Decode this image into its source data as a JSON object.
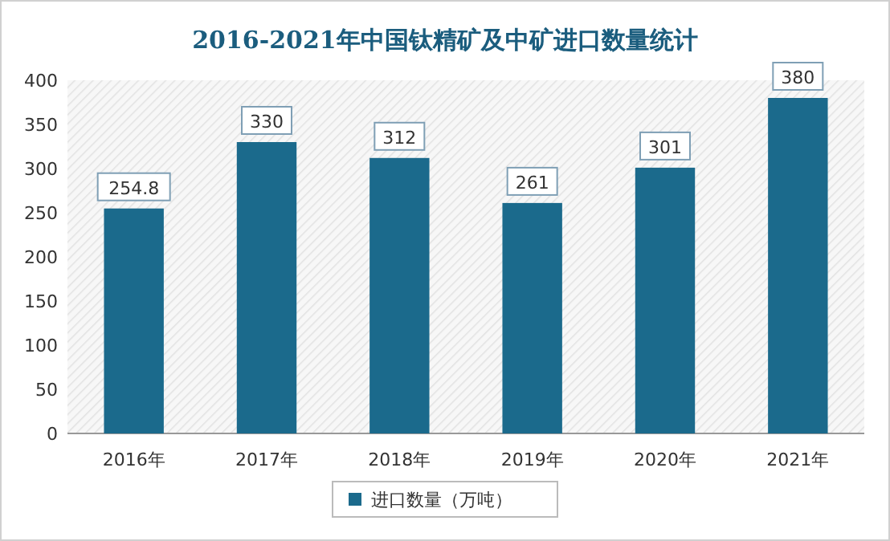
{
  "chart_data": {
    "type": "bar",
    "title": "2016-2021年中国钛精矿及中矿进口数量统计",
    "categories": [
      "2016年",
      "2017年",
      "2018年",
      "2019年",
      "2020年",
      "2021年"
    ],
    "series": [
      {
        "name": "进口数量（万吨）",
        "color": "#1b6a8c",
        "values": [
          254.8,
          330,
          312,
          261,
          301,
          380
        ]
      }
    ],
    "ylim": [
      0,
      400
    ],
    "yticks": [
      0,
      50,
      100,
      150,
      200,
      250,
      300,
      350,
      400
    ],
    "data_labels": true,
    "legend": "bottom",
    "grid": false
  }
}
